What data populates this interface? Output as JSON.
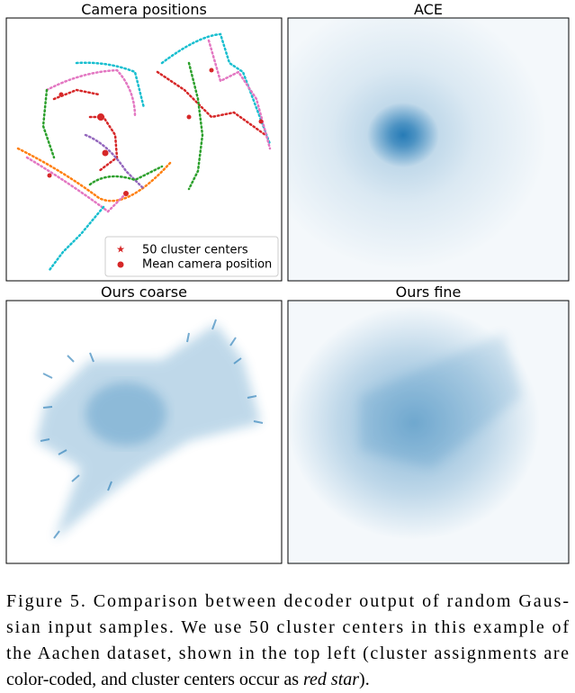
{
  "figure": {
    "panels": [
      {
        "title": "Camera positions",
        "legend": [
          "50 cluster centers",
          "Mean camera position"
        ]
      },
      {
        "title": "ACE"
      },
      {
        "title": "Ours coarse"
      },
      {
        "title": "Ours fine"
      }
    ],
    "caption": {
      "line1": "Figure 5.  Comparison between decoder output of random Gaus-",
      "line2": "sian input samples.  We use 50 cluster centers in this example of",
      "line3": "the Aachen dataset, shown in the top left (cluster assignments are",
      "line4_before": "color-coded, and cluster centers occur as ",
      "line4_italic": "red star",
      "line4_after": ")."
    }
  }
}
